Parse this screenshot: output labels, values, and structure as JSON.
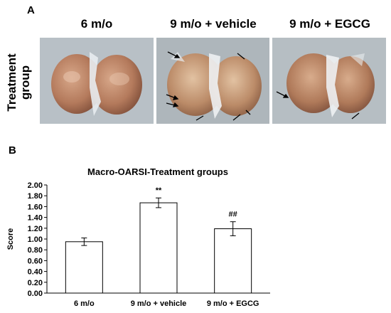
{
  "panel_a": {
    "letter": "A",
    "columns": [
      "6 m/o",
      "9 m/o + vehicle",
      "9 m/o + EGCG"
    ],
    "row_label_line1": "Treatment",
    "row_label_line2": "group"
  },
  "panel_b": {
    "letter": "B"
  },
  "chart_data": {
    "type": "bar",
    "title": "Macro-OARSI-Treatment groups",
    "xlabel": "",
    "ylabel": "Score",
    "categories": [
      "6 m/o",
      "9 m/o + vehicle",
      "9 m/o + EGCG"
    ],
    "values": [
      0.95,
      1.67,
      1.19
    ],
    "errors": [
      0.07,
      0.09,
      0.13
    ],
    "annotations": [
      "",
      "**",
      "##"
    ],
    "ylim": [
      0,
      2
    ],
    "yticks": [
      "0.00",
      "0.20",
      "0.40",
      "0.60",
      "0.80",
      "1.00",
      "1.20",
      "1.40",
      "1.60",
      "1.80",
      "2.00"
    ],
    "grid": false,
    "bar_color": "#ffffff",
    "edge_color": "#000000"
  }
}
